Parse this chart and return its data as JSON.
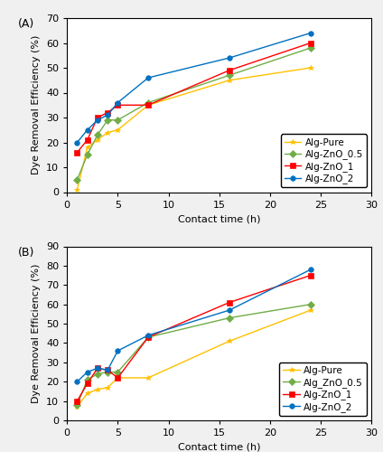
{
  "panel_A": {
    "x": [
      1,
      2,
      3,
      4,
      5,
      8,
      16,
      24
    ],
    "Alg_Pure": [
      1,
      18,
      21,
      24,
      25,
      35,
      45,
      50
    ],
    "Alg_ZnO_05": [
      5,
      15,
      23,
      29,
      29,
      36,
      47,
      58
    ],
    "Alg_ZnO_1": [
      16,
      21,
      30,
      32,
      35,
      35,
      49,
      60
    ],
    "Alg_ZnO_2": [
      20,
      25,
      29,
      31,
      36,
      46,
      54,
      64
    ],
    "ylim": [
      0,
      70
    ],
    "yticks": [
      0,
      10,
      20,
      30,
      40,
      50,
      60,
      70
    ],
    "label": "(A)",
    "legend_labels": [
      "Alg-Pure",
      "Alg-ZnO_0.5",
      "Alg-ZnO_1",
      "Alg-ZnO_2"
    ]
  },
  "panel_B": {
    "x": [
      1,
      2,
      3,
      4,
      5,
      8,
      16,
      24
    ],
    "Alg_Pure": [
      7,
      14,
      16,
      17,
      22,
      22,
      41,
      57
    ],
    "Alg_ZnO_05": [
      8,
      21,
      24,
      25,
      25,
      43,
      53,
      60
    ],
    "Alg_ZnO_1": [
      10,
      19,
      27,
      26,
      22,
      43,
      61,
      75
    ],
    "Alg_ZnO_2": [
      20,
      25,
      27,
      26,
      36,
      44,
      57,
      78
    ],
    "ylim": [
      0,
      90
    ],
    "yticks": [
      0,
      10,
      20,
      30,
      40,
      50,
      60,
      70,
      80,
      90
    ],
    "label": "(B)",
    "legend_labels": [
      "Alg-Pure",
      "Alg_ZnO_0.5",
      "Alg-ZnO_1",
      "Alg-ZnO_2"
    ]
  },
  "xlim": [
    0,
    30
  ],
  "xticks": [
    0,
    5,
    10,
    15,
    20,
    25,
    30
  ],
  "xlabel": "Contact time (h)",
  "ylabel": "Dye Removal Efficiency (%)",
  "series_keys": [
    "Alg_Pure",
    "Alg_ZnO_05",
    "Alg_ZnO_1",
    "Alg_ZnO_2"
  ],
  "colors": {
    "Alg_Pure": "#FFC000",
    "Alg_ZnO_05": "#70AD47",
    "Alg_ZnO_1": "#FF0000",
    "Alg_ZnO_2": "#0070C0"
  },
  "markers": {
    "Alg_Pure": "*",
    "Alg_ZnO_05": "D",
    "Alg_ZnO_1": "s",
    "Alg_ZnO_2": "o"
  },
  "fontsize": 8,
  "label_fontsize": 8,
  "panel_label_fontsize": 9,
  "marker_size": 4,
  "linewidth": 1.0,
  "fig_bg": "#f0f0f0"
}
